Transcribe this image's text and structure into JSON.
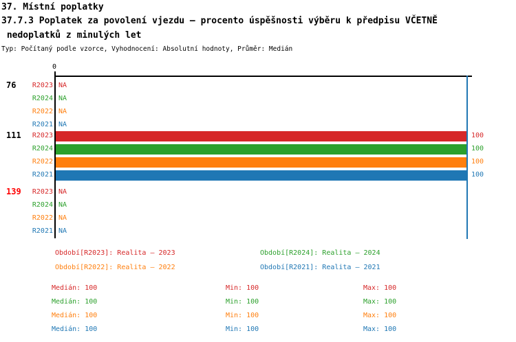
{
  "header": {
    "line1": "37. Místní poplatky",
    "line2": "37.7.3 Poplatek za povolení vjezdu – procento úspěšnosti výběru k předpisu VČETNĚ",
    "line3": " nedoplatků z minulých let",
    "meta": "Typ: Počítaný podle vzorce, Vyhodnocení: Absolutní hodnoty, Průměr: Medián"
  },
  "colors": {
    "r2023": "#d62728",
    "r2024": "#2ca02c",
    "r2022": "#ff7f0e",
    "r2021": "#1f77b4",
    "group_alert": "#ff0000",
    "axis": "#000000",
    "gridline_100": "#1f77b4",
    "background": "#ffffff"
  },
  "chart_data": {
    "type": "bar",
    "orientation": "horizontal",
    "x_axis": {
      "origin_label": "0",
      "gridline_value": 100,
      "range": [
        0,
        100
      ]
    },
    "series_order": [
      "R2023",
      "R2024",
      "R2022",
      "R2021"
    ],
    "groups": [
      {
        "label": "76",
        "rows": [
          {
            "series": "R2023",
            "value": null,
            "display": "NA"
          },
          {
            "series": "R2024",
            "value": null,
            "display": "NA"
          },
          {
            "series": "R2022",
            "value": null,
            "display": "NA"
          },
          {
            "series": "R2021",
            "value": null,
            "display": "NA"
          }
        ]
      },
      {
        "label": "111",
        "rows": [
          {
            "series": "R2023",
            "value": 100,
            "display": "100"
          },
          {
            "series": "R2024",
            "value": 100,
            "display": "100"
          },
          {
            "series": "R2022",
            "value": 100,
            "display": "100"
          },
          {
            "series": "R2021",
            "value": 100,
            "display": "100"
          }
        ]
      },
      {
        "label": "139",
        "rows": [
          {
            "series": "R2023",
            "value": null,
            "display": "NA"
          },
          {
            "series": "R2024",
            "value": null,
            "display": "NA"
          },
          {
            "series": "R2022",
            "value": null,
            "display": "NA"
          },
          {
            "series": "R2021",
            "value": null,
            "display": "NA"
          }
        ]
      }
    ]
  },
  "legend": {
    "items": [
      {
        "text": "Období[R2023]: Realita – 2023",
        "color": "#d62728"
      },
      {
        "text": "Období[R2024]: Realita – 2024",
        "color": "#2ca02c"
      },
      {
        "text": "Období[R2022]: Realita – 2022",
        "color": "#ff7f0e"
      },
      {
        "text": "Období[R2021]: Realita – 2021",
        "color": "#1f77b4"
      }
    ]
  },
  "stats": {
    "median_label": "Medián:",
    "min_label": "Min:",
    "max_label": "Max:",
    "rows": [
      {
        "series": "R2023",
        "median": "100",
        "min": "100",
        "max": "100"
      },
      {
        "series": "R2024",
        "median": "100",
        "min": "100",
        "max": "100"
      },
      {
        "series": "R2022",
        "median": "100",
        "min": "100",
        "max": "100"
      },
      {
        "series": "R2021",
        "median": "100",
        "min": "100",
        "max": "100"
      }
    ]
  }
}
